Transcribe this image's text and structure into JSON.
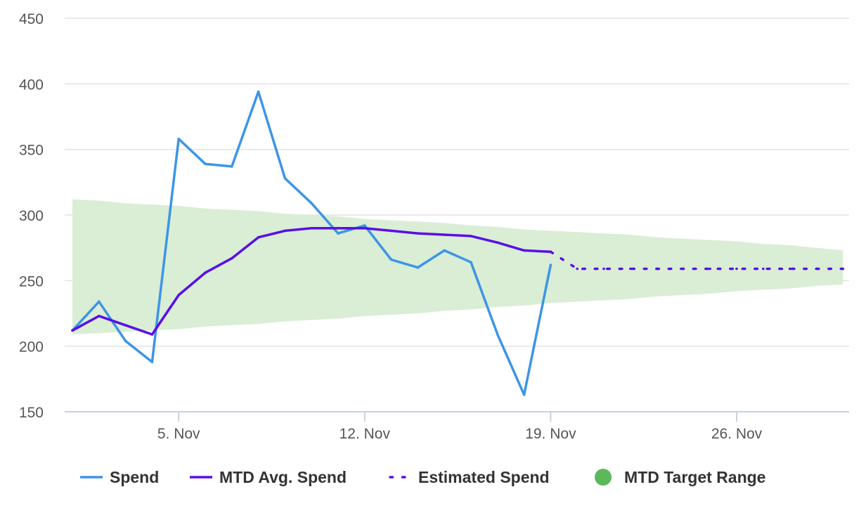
{
  "chart_data": {
    "type": "line",
    "x_axis": {
      "type": "datetime",
      "range": [
        "2023-11-01",
        "2023-11-30"
      ],
      "ticks": [
        {
          "date": "2023-11-05",
          "label": "5. Nov"
        },
        {
          "date": "2023-11-12",
          "label": "12. Nov"
        },
        {
          "date": "2023-11-19",
          "label": "19. Nov"
        },
        {
          "date": "2023-11-26",
          "label": "26. Nov"
        }
      ]
    },
    "y_axis": {
      "range": [
        150,
        450
      ],
      "ticks": [
        150,
        200,
        250,
        300,
        350,
        400,
        450
      ],
      "gridlines": true
    },
    "legend_position": "bottom-center",
    "series": [
      {
        "name": "Spend",
        "kind": "line",
        "color": "#3d95e6",
        "points": [
          [
            "2023-11-01",
            212
          ],
          [
            "2023-11-02",
            234
          ],
          [
            "2023-11-03",
            204
          ],
          [
            "2023-11-04",
            188
          ],
          [
            "2023-11-05",
            358
          ],
          [
            "2023-11-06",
            339
          ],
          [
            "2023-11-07",
            337
          ],
          [
            "2023-11-08",
            394
          ],
          [
            "2023-11-09",
            328
          ],
          [
            "2023-11-10",
            309
          ],
          [
            "2023-11-11",
            286
          ],
          [
            "2023-11-12",
            292
          ],
          [
            "2023-11-13",
            266
          ],
          [
            "2023-11-14",
            260
          ],
          [
            "2023-11-15",
            273
          ],
          [
            "2023-11-16",
            264
          ],
          [
            "2023-11-17",
            209
          ],
          [
            "2023-11-18",
            163
          ],
          [
            "2023-11-19",
            262
          ]
        ]
      },
      {
        "name": "MTD Avg. Spend",
        "kind": "line",
        "color": "#5a0fe8",
        "points": [
          [
            "2023-11-01",
            212
          ],
          [
            "2023-11-02",
            223
          ],
          [
            "2023-11-03",
            216
          ],
          [
            "2023-11-04",
            209
          ],
          [
            "2023-11-05",
            239
          ],
          [
            "2023-11-06",
            256
          ],
          [
            "2023-11-07",
            267
          ],
          [
            "2023-11-08",
            283
          ],
          [
            "2023-11-09",
            288
          ],
          [
            "2023-11-10",
            290
          ],
          [
            "2023-11-11",
            290
          ],
          [
            "2023-11-12",
            290
          ],
          [
            "2023-11-13",
            288
          ],
          [
            "2023-11-14",
            286
          ],
          [
            "2023-11-15",
            285
          ],
          [
            "2023-11-16",
            284
          ],
          [
            "2023-11-17",
            279
          ],
          [
            "2023-11-18",
            273
          ],
          [
            "2023-11-19",
            272
          ]
        ]
      },
      {
        "name": "Estimated Spend",
        "kind": "dotted-line",
        "color": "#5a0fe8",
        "points": [
          [
            "2023-11-19",
            272
          ],
          [
            "2023-11-20",
            259
          ],
          [
            "2023-11-21",
            259
          ],
          [
            "2023-11-22",
            259
          ],
          [
            "2023-11-23",
            259
          ],
          [
            "2023-11-24",
            259
          ],
          [
            "2023-11-25",
            259
          ],
          [
            "2023-11-26",
            259
          ],
          [
            "2023-11-27",
            259
          ],
          [
            "2023-11-28",
            259
          ],
          [
            "2023-11-29",
            259
          ],
          [
            "2023-11-30",
            259
          ]
        ]
      },
      {
        "name": "MTD Target Range",
        "kind": "area-range",
        "color": "#d9eed5",
        "legend_color": "#5cb85c",
        "points": [
          [
            "2023-11-01",
            209,
            312
          ],
          [
            "2023-11-02",
            210,
            311
          ],
          [
            "2023-11-03",
            211,
            309
          ],
          [
            "2023-11-04",
            212,
            308
          ],
          [
            "2023-11-05",
            213,
            307
          ],
          [
            "2023-11-06",
            215,
            305
          ],
          [
            "2023-11-07",
            216,
            304
          ],
          [
            "2023-11-08",
            217,
            303
          ],
          [
            "2023-11-09",
            219,
            301
          ],
          [
            "2023-11-10",
            220,
            300
          ],
          [
            "2023-11-11",
            221,
            299
          ],
          [
            "2023-11-12",
            223,
            297
          ],
          [
            "2023-11-13",
            224,
            296
          ],
          [
            "2023-11-14",
            225,
            295
          ],
          [
            "2023-11-15",
            227,
            294
          ],
          [
            "2023-11-16",
            228,
            292
          ],
          [
            "2023-11-17",
            230,
            291
          ],
          [
            "2023-11-18",
            231,
            289
          ],
          [
            "2023-11-19",
            233,
            288
          ],
          [
            "2023-11-20",
            234,
            287
          ],
          [
            "2023-11-21",
            235,
            286
          ],
          [
            "2023-11-22",
            236,
            285
          ],
          [
            "2023-11-23",
            238,
            283
          ],
          [
            "2023-11-24",
            239,
            282
          ],
          [
            "2023-11-25",
            240,
            281
          ],
          [
            "2023-11-26",
            242,
            280
          ],
          [
            "2023-11-27",
            243,
            278
          ],
          [
            "2023-11-28",
            244,
            277
          ],
          [
            "2023-11-29",
            246,
            275
          ],
          [
            "2023-11-30",
            247,
            273
          ]
        ]
      }
    ]
  }
}
